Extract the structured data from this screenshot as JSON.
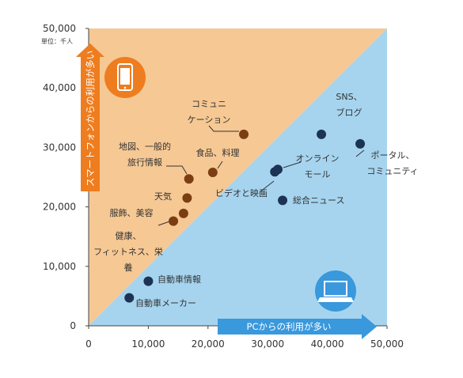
{
  "chart_data": {
    "type": "scatter",
    "unit_label": "単位：千人",
    "xlim": [
      0,
      50000
    ],
    "ylim": [
      0,
      50000
    ],
    "x_ticks": [
      "0",
      "10,000",
      "20,000",
      "30,000",
      "40,000",
      "50,000"
    ],
    "y_ticks": [
      "0",
      "10,000",
      "20,000",
      "30,000",
      "40,000",
      "50,000"
    ],
    "regions": {
      "upper": {
        "label": "スマートフォンからの利用が多い",
        "color": "#f6c894",
        "arrow_color": "#ee7d1f"
      },
      "lower": {
        "label": "PCからの利用が多い",
        "color": "#a6d4ef",
        "arrow_color": "#3a98dc"
      }
    },
    "grid": false,
    "marker_color_upper": "#7a3e12",
    "marker_color_lower": "#1c3354",
    "points": [
      {
        "label": "コミュニケーション",
        "lines": [
          "コミュニ",
          "ケーション"
        ],
        "x": 26000,
        "y": 32200,
        "side": "upper"
      },
      {
        "label": "地図、一般的旅行情報",
        "lines": [
          "地図、一般的",
          "旅行情報"
        ],
        "x": 16800,
        "y": 24700,
        "side": "upper"
      },
      {
        "label": "食品、料理",
        "lines": [
          "食品、料理"
        ],
        "x": 20800,
        "y": 25800,
        "side": "upper"
      },
      {
        "label": "天気",
        "lines": [
          "天気"
        ],
        "x": 16500,
        "y": 21500,
        "side": "upper"
      },
      {
        "label": "服飾、美容",
        "lines": [
          "服飾、美容"
        ],
        "x": 15900,
        "y": 18900,
        "side": "upper"
      },
      {
        "label": "健康、フィットネス、栄養",
        "lines": [
          "健康、",
          "フィットネス、栄",
          "養"
        ],
        "x": 14200,
        "y": 17600,
        "side": "upper"
      },
      {
        "label": "SNS、ブログ",
        "lines": [
          "SNS、",
          "ブログ"
        ],
        "x": 39000,
        "y": 32200,
        "side": "lower"
      },
      {
        "label": "ポータル、コミュニティ",
        "lines": [
          "ポータル、",
          "コミュニティ"
        ],
        "x": 45500,
        "y": 30600,
        "side": "lower"
      },
      {
        "label": "オンラインモール",
        "lines": [
          "オンライン",
          "モール"
        ],
        "x": 31700,
        "y": 26300,
        "side": "lower"
      },
      {
        "label": "ビデオと映画",
        "lines": [
          "ビデオと映画"
        ],
        "x": 31200,
        "y": 25900,
        "side": "lower"
      },
      {
        "label": "総合ニュース",
        "lines": [
          "総合ニュース"
        ],
        "x": 32500,
        "y": 21100,
        "side": "lower"
      },
      {
        "label": "自動車情報",
        "lines": [
          "自動車情報"
        ],
        "x": 10000,
        "y": 7500,
        "side": "lower"
      },
      {
        "label": "自動車メーカー",
        "lines": [
          "自動車メーカー"
        ],
        "x": 6800,
        "y": 4700,
        "side": "lower"
      }
    ]
  }
}
